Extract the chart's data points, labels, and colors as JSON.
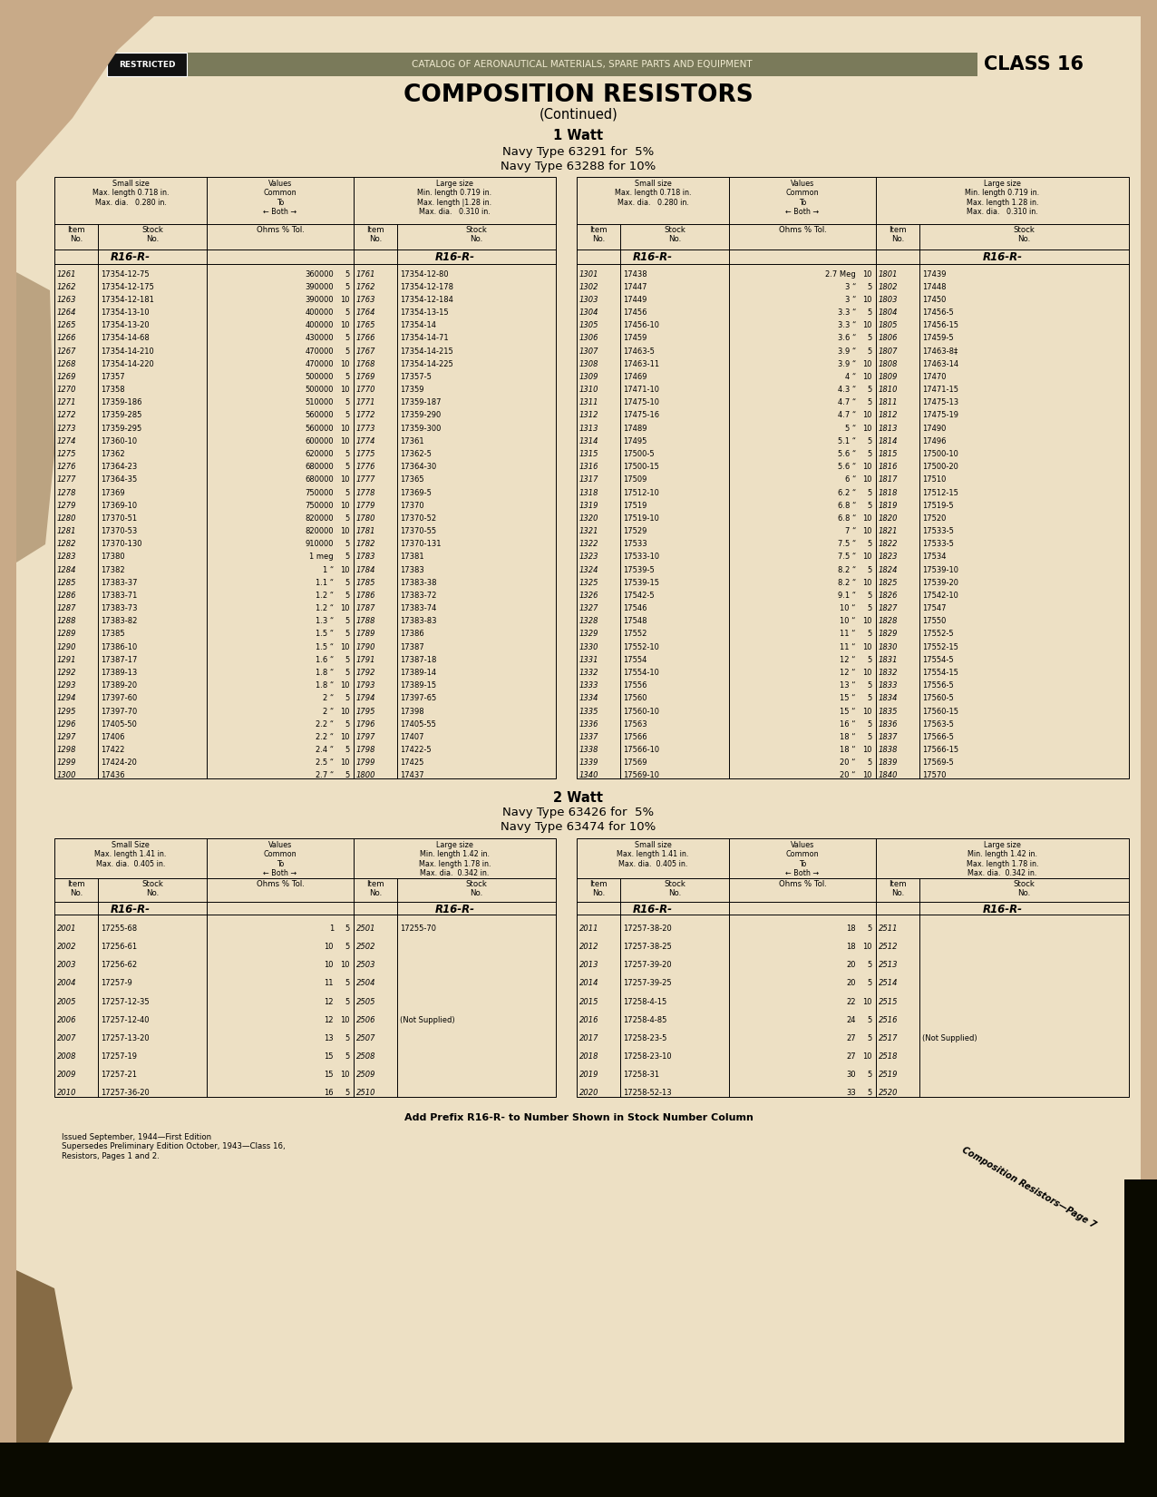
{
  "page_bg_color": "#c8aa88",
  "paper_color": "#ede0c4",
  "header_banner_color": "#7a7a5a",
  "title_main": "COMPOSITION RESISTORS",
  "title_sub": "(Continued)",
  "section1_title": "1 Watt",
  "section1_line1": "Navy Type 63291 for  5%",
  "section1_line2": "Navy Type 63288 for 10%",
  "section2_title": "2 Watt",
  "section2_line1": "Navy Type 63426 for  5%",
  "section2_line2": "Navy Type 63474 for 10%",
  "restricted_text": "RESTRICTED",
  "header_text": "CATALOG OF AERONAUTICAL MATERIALS, SPARE PARTS AND EQUIPMENT",
  "class_text": "CLASS 16",
  "footer_note": "Add Prefix R16-R- to Number Shown in Stock Number Column",
  "footer_edition": "Issued September, 1944—First Edition\nSupersedes Preliminary Edition October, 1943—Class 16,\nResistors, Pages 1 and 2.",
  "footer_page": "Composition Resistors—Page 7",
  "table1_data_left": [
    [
      "1261",
      "17354-12-75",
      "360000",
      "5",
      "1761",
      "17354-12-80"
    ],
    [
      "1262",
      "17354-12-175",
      "390000",
      "5",
      "1762",
      "17354-12-178"
    ],
    [
      "1263",
      "17354-12-181",
      "390000",
      "10",
      "1763",
      "17354-12-184"
    ],
    [
      "1264",
      "17354-13-10",
      "400000",
      "5",
      "1764",
      "17354-13-15"
    ],
    [
      "1265",
      "17354-13-20",
      "400000",
      "10",
      "1765",
      "17354-14"
    ],
    [
      "1266",
      "17354-14-68",
      "430000",
      "5",
      "1766",
      "17354-14-71"
    ],
    [
      "1267",
      "17354-14-210",
      "470000",
      "5",
      "1767",
      "17354-14-215"
    ],
    [
      "1268",
      "17354-14-220",
      "470000",
      "10",
      "1768",
      "17354-14-225"
    ],
    [
      "1269",
      "17357",
      "500000",
      "5",
      "1769",
      "17357-5"
    ],
    [
      "1270",
      "17358",
      "500000",
      "10",
      "1770",
      "17359"
    ],
    [
      "1271",
      "17359-186",
      "510000",
      "5",
      "1771",
      "17359-187"
    ],
    [
      "1272",
      "17359-285",
      "560000",
      "5",
      "1772",
      "17359-290"
    ],
    [
      "1273",
      "17359-295",
      "560000",
      "10",
      "1773",
      "17359-300"
    ],
    [
      "1274",
      "17360-10",
      "600000",
      "10",
      "1774",
      "17361"
    ],
    [
      "1275",
      "17362",
      "620000",
      "5",
      "1775",
      "17362-5"
    ],
    [
      "1276",
      "17364-23",
      "680000",
      "5",
      "1776",
      "17364-30"
    ],
    [
      "1277",
      "17364-35",
      "680000",
      "10",
      "1777",
      "17365"
    ],
    [
      "1278",
      "17369",
      "750000",
      "5",
      "1778",
      "17369-5"
    ],
    [
      "1279",
      "17369-10",
      "750000",
      "10",
      "1779",
      "17370"
    ],
    [
      "1280",
      "17370-51",
      "820000",
      "5",
      "1780",
      "17370-52"
    ],
    [
      "1281",
      "17370-53",
      "820000",
      "10",
      "1781",
      "17370-55"
    ],
    [
      "1282",
      "17370-130",
      "910000",
      "5",
      "1782",
      "17370-131"
    ],
    [
      "1283",
      "17380",
      "1 meg",
      "5",
      "1783",
      "17381"
    ],
    [
      "1284",
      "17382",
      "1 “",
      "10",
      "1784",
      "17383"
    ],
    [
      "1285",
      "17383-37",
      "1.1 “",
      "5",
      "1785",
      "17383-38"
    ],
    [
      "1286",
      "17383-71",
      "1.2 “",
      "5",
      "1786",
      "17383-72"
    ],
    [
      "1287",
      "17383-73",
      "1.2 “",
      "10",
      "1787",
      "17383-74"
    ],
    [
      "1288",
      "17383-82",
      "1.3 “",
      "5",
      "1788",
      "17383-83"
    ],
    [
      "1289",
      "17385",
      "1.5 “",
      "5",
      "1789",
      "17386"
    ],
    [
      "1290",
      "17386-10",
      "1.5 “",
      "10",
      "1790",
      "17387"
    ],
    [
      "1291",
      "17387-17",
      "1.6 “",
      "5",
      "1791",
      "17387-18"
    ],
    [
      "1292",
      "17389-13",
      "1.8 “",
      "5",
      "1792",
      "17389-14"
    ],
    [
      "1293",
      "17389-20",
      "1.8 “",
      "10",
      "1793",
      "17389-15"
    ],
    [
      "1294",
      "17397-60",
      "2 “",
      "5",
      "1794",
      "17397-65"
    ],
    [
      "1295",
      "17397-70",
      "2 “",
      "10",
      "1795",
      "17398"
    ],
    [
      "1296",
      "17405-50",
      "2.2 “",
      "5",
      "1796",
      "17405-55"
    ],
    [
      "1297",
      "17406",
      "2.2 “",
      "10",
      "1797",
      "17407"
    ],
    [
      "1298",
      "17422",
      "2.4 “",
      "5",
      "1798",
      "17422-5"
    ],
    [
      "1299",
      "17424-20",
      "2.5 “",
      "10",
      "1799",
      "17425"
    ],
    [
      "1300",
      "17436",
      "2.7 “",
      "5",
      "1800",
      "17437"
    ]
  ],
  "table1_data_right": [
    [
      "1301",
      "17438",
      "2.7 Meg",
      "10",
      "1801",
      "17439"
    ],
    [
      "1302",
      "17447",
      "3 “",
      "5",
      "1802",
      "17448"
    ],
    [
      "1303",
      "17449",
      "3 “",
      "10",
      "1803",
      "17450"
    ],
    [
      "1304",
      "17456",
      "3.3 “",
      "5",
      "1804",
      "17456-5"
    ],
    [
      "1305",
      "17456-10",
      "3.3 “",
      "10",
      "1805",
      "17456-15"
    ],
    [
      "1306",
      "17459",
      "3.6 “",
      "5",
      "1806",
      "17459-5"
    ],
    [
      "1307",
      "17463-5",
      "3.9 “",
      "5",
      "1807",
      "17463-8‡"
    ],
    [
      "1308",
      "17463-11",
      "3.9 “",
      "10",
      "1808",
      "17463-14"
    ],
    [
      "1309",
      "17469",
      "4 “",
      "10",
      "1809",
      "17470"
    ],
    [
      "1310",
      "17471-10",
      "4.3 “",
      "5",
      "1810",
      "17471-15"
    ],
    [
      "1311",
      "17475-10",
      "4.7 “",
      "5",
      "1811",
      "17475-13"
    ],
    [
      "1312",
      "17475-16",
      "4.7 “",
      "10",
      "1812",
      "17475-19"
    ],
    [
      "1313",
      "17489",
      "5 “",
      "10",
      "1813",
      "17490"
    ],
    [
      "1314",
      "17495",
      "5.1 “",
      "5",
      "1814",
      "17496"
    ],
    [
      "1315",
      "17500-5",
      "5.6 “",
      "5",
      "1815",
      "17500-10"
    ],
    [
      "1316",
      "17500-15",
      "5.6 “",
      "10",
      "1816",
      "17500-20"
    ],
    [
      "1317",
      "17509",
      "6 “",
      "10",
      "1817",
      "17510"
    ],
    [
      "1318",
      "17512-10",
      "6.2 “",
      "5",
      "1818",
      "17512-15"
    ],
    [
      "1319",
      "17519",
      "6.8 “",
      "5",
      "1819",
      "17519-5"
    ],
    [
      "1320",
      "17519-10",
      "6.8 “",
      "10",
      "1820",
      "17520"
    ],
    [
      "1321",
      "17529",
      "7 “",
      "10",
      "1821",
      "17533-5"
    ],
    [
      "1322",
      "17533",
      "7.5 “",
      "5",
      "1822",
      "17533-5"
    ],
    [
      "1323",
      "17533-10",
      "7.5 “",
      "10",
      "1823",
      "17534"
    ],
    [
      "1324",
      "17539-5",
      "8.2 “",
      "5",
      "1824",
      "17539-10"
    ],
    [
      "1325",
      "17539-15",
      "8.2 “",
      "10",
      "1825",
      "17539-20"
    ],
    [
      "1326",
      "17542-5",
      "9.1 “",
      "5",
      "1826",
      "17542-10"
    ],
    [
      "1327",
      "17546",
      "10 “",
      "5",
      "1827",
      "17547"
    ],
    [
      "1328",
      "17548",
      "10 “",
      "10",
      "1828",
      "17550"
    ],
    [
      "1329",
      "17552",
      "11 “",
      "5",
      "1829",
      "17552-5"
    ],
    [
      "1330",
      "17552-10",
      "11 “",
      "10",
      "1830",
      "17552-15"
    ],
    [
      "1331",
      "17554",
      "12 “",
      "5",
      "1831",
      "17554-5"
    ],
    [
      "1332",
      "17554-10",
      "12 “",
      "10",
      "1832",
      "17554-15"
    ],
    [
      "1333",
      "17556",
      "13 “",
      "5",
      "1833",
      "17556-5"
    ],
    [
      "1334",
      "17560",
      "15 “",
      "5",
      "1834",
      "17560-5"
    ],
    [
      "1335",
      "17560-10",
      "15 “",
      "10",
      "1835",
      "17560-15"
    ],
    [
      "1336",
      "17563",
      "16 “",
      "5",
      "1836",
      "17563-5"
    ],
    [
      "1337",
      "17566",
      "18 “",
      "5",
      "1837",
      "17566-5"
    ],
    [
      "1338",
      "17566-10",
      "18 “",
      "10",
      "1838",
      "17566-15"
    ],
    [
      "1339",
      "17569",
      "20 “",
      "5",
      "1839",
      "17569-5"
    ],
    [
      "1340",
      "17569-10",
      "20 “",
      "10",
      "1840",
      "17570"
    ]
  ],
  "table2_data_left": [
    [
      "2001",
      "17255-68",
      "1",
      "5",
      "2501",
      "17255-70"
    ],
    [
      "2002",
      "17256-61",
      "10",
      "5",
      "2502",
      ""
    ],
    [
      "2003",
      "17256-62",
      "10",
      "10",
      "2503",
      ""
    ],
    [
      "2004",
      "17257-9",
      "11",
      "5",
      "2504",
      ""
    ],
    [
      "2005",
      "17257-12-35",
      "12",
      "5",
      "2505",
      ""
    ],
    [
      "2006",
      "17257-12-40",
      "12",
      "10",
      "2506",
      "(Not Supplied)"
    ],
    [
      "2007",
      "17257-13-20",
      "13",
      "5",
      "2507",
      ""
    ],
    [
      "2008",
      "17257-19",
      "15",
      "5",
      "2508",
      ""
    ],
    [
      "2009",
      "17257-21",
      "15",
      "10",
      "2509",
      ""
    ],
    [
      "2010",
      "17257-36-20",
      "16",
      "5",
      "2510",
      ""
    ]
  ],
  "table2_data_right": [
    [
      "2011",
      "17257-38-20",
      "18",
      "5",
      "2511",
      ""
    ],
    [
      "2012",
      "17257-38-25",
      "18",
      "10",
      "2512",
      ""
    ],
    [
      "2013",
      "17257-39-20",
      "20",
      "5",
      "2513",
      ""
    ],
    [
      "2014",
      "17257-39-25",
      "20",
      "5",
      "2514",
      ""
    ],
    [
      "2015",
      "17258-4-15",
      "22",
      "10",
      "2515",
      ""
    ],
    [
      "2016",
      "17258-4-85",
      "24",
      "5",
      "2516",
      ""
    ],
    [
      "2017",
      "17258-23-5",
      "27",
      "5",
      "2517",
      "(Not Supplied)"
    ],
    [
      "2018",
      "17258-23-10",
      "27",
      "10",
      "2518",
      ""
    ],
    [
      "2019",
      "17258-31",
      "30",
      "5",
      "2519",
      ""
    ],
    [
      "2020",
      "17258-52-13",
      "33",
      "5",
      "2520",
      ""
    ]
  ]
}
